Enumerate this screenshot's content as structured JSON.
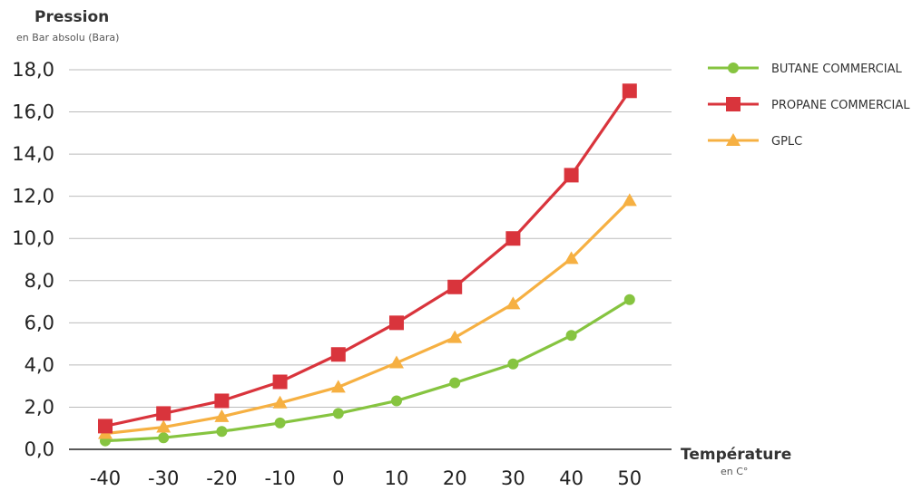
{
  "chart_data": {
    "type": "line",
    "y_title": "Pression",
    "y_subtitle": "en Bar absolu (Bara)",
    "x_title": "Température",
    "x_subtitle": "en C°",
    "x": [
      -40,
      -30,
      -20,
      -10,
      0,
      10,
      20,
      30,
      40,
      50
    ],
    "x_tick_labels": [
      "-40",
      "-30",
      "-20",
      "-10",
      "0",
      "10",
      "20",
      "30",
      "40",
      "50"
    ],
    "ylim": [
      0,
      18
    ],
    "y_ticks": [
      0,
      2,
      4,
      6,
      8,
      10,
      12,
      14,
      16,
      18
    ],
    "y_tick_labels": [
      "0,0",
      "2,0",
      "4,0",
      "6,0",
      "8,0",
      "10,0",
      "12,0",
      "14,0",
      "16,0",
      "18,0"
    ],
    "grid": "horizontal",
    "legend_position": "top-right",
    "series": [
      {
        "name": "BUTANE COMMERCIAL",
        "color": "#86c440",
        "marker": "circle",
        "values": [
          0.4,
          0.55,
          0.85,
          1.25,
          1.7,
          2.3,
          3.15,
          4.05,
          5.4,
          7.1
        ]
      },
      {
        "name": "PROPANE COMMERCIAL",
        "color": "#d9343c",
        "marker": "square",
        "values": [
          1.1,
          1.7,
          2.3,
          3.2,
          4.5,
          6.0,
          7.7,
          10.0,
          13.0,
          17.0
        ]
      },
      {
        "name": "GPLC",
        "color": "#f6b042",
        "marker": "triangle",
        "values": [
          0.75,
          1.05,
          1.55,
          2.2,
          2.95,
          4.1,
          5.3,
          6.9,
          9.05,
          11.8
        ]
      }
    ]
  }
}
